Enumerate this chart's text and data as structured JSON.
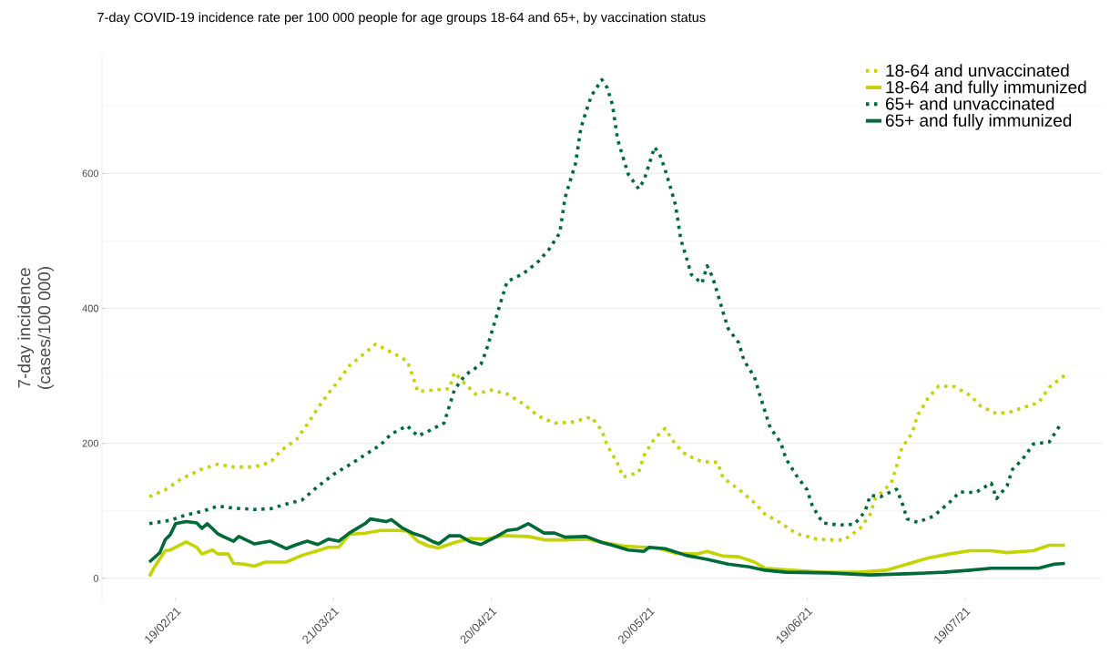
{
  "chart_data": {
    "type": "line",
    "title": "7-day COVID-19 incidence rate per 100 000 people for age groups 18-64 and 65+, by vaccination status",
    "ylabel": "7-day incidence\n(cases/100 000)",
    "xlim": [
      "2021-02-05",
      "2021-08-14"
    ],
    "xticks": [
      {
        "value": "2021-02-19",
        "label": "19/02/21"
      },
      {
        "value": "2021-03-21",
        "label": "21/03/21"
      },
      {
        "value": "2021-04-20",
        "label": "20/04/21"
      },
      {
        "value": "2021-05-20",
        "label": "20/05/21"
      },
      {
        "value": "2021-06-19",
        "label": "19/06/21"
      },
      {
        "value": "2021-07-19",
        "label": "19/07/21"
      }
    ],
    "ylim": [
      -34,
      776
    ],
    "yticks": [
      0,
      {
        "value": 100,
        "label": null
      },
      200,
      {
        "value": 300,
        "label": null
      },
      400,
      {
        "value": 500,
        "label": null
      },
      600,
      {
        "value": 700,
        "label": null
      }
    ],
    "grid": "y",
    "legend": "top right",
    "series": [
      {
        "name": "18-64 and unvaccinated",
        "color": "#c3d400",
        "line_style": "dotted",
        "x": [
          "2021-02-14",
          "2021-02-17",
          "2021-02-20",
          "2021-02-24",
          "2021-02-27",
          "2021-03-02",
          "2021-03-06",
          "2021-03-09",
          "2021-03-11",
          "2021-03-14",
          "2021-03-16",
          "2021-03-18",
          "2021-03-20",
          "2021-03-22",
          "2021-03-24",
          "2021-03-27",
          "2021-03-29",
          "2021-04-01",
          "2021-04-04",
          "2021-04-05",
          "2021-04-06",
          "2021-04-09",
          "2021-04-12",
          "2021-04-13",
          "2021-04-15",
          "2021-04-17",
          "2021-04-20",
          "2021-04-23",
          "2021-04-26",
          "2021-04-29",
          "2021-05-02",
          "2021-05-05",
          "2021-05-09",
          "2021-05-11",
          "2021-05-12",
          "2021-05-14",
          "2021-05-15",
          "2021-05-18",
          "2021-05-19",
          "2021-05-21",
          "2021-05-23",
          "2021-05-25",
          "2021-05-27",
          "2021-05-30",
          "2021-06-02",
          "2021-06-03",
          "2021-06-06",
          "2021-06-09",
          "2021-06-11",
          "2021-06-14",
          "2021-06-17",
          "2021-06-21",
          "2021-06-23",
          "2021-06-26",
          "2021-06-29",
          "2021-07-01",
          "2021-07-02",
          "2021-07-05",
          "2021-07-06",
          "2021-07-07",
          "2021-07-09",
          "2021-07-10",
          "2021-07-12",
          "2021-07-14",
          "2021-07-17",
          "2021-07-20",
          "2021-07-22",
          "2021-07-25",
          "2021-07-28",
          "2021-07-30",
          "2021-08-02",
          "2021-08-04",
          "2021-08-07"
        ],
        "values": [
          121,
          131,
          147,
          162,
          169,
          165,
          165,
          172,
          189,
          206,
          228,
          252,
          274,
          293,
          315,
          334,
          347,
          335,
          322,
          301,
          277,
          279,
          281,
          305,
          288,
          273,
          279,
          273,
          259,
          240,
          230,
          231,
          239,
          219,
          197,
          170,
          150,
          157,
          182,
          207,
          222,
          198,
          183,
          173,
          172,
          149,
          132,
          112,
          95,
          82,
          66,
          58,
          57,
          57,
          73,
          95,
          119,
          141,
          166,
          193,
          216,
          242,
          267,
          285,
          284,
          271,
          255,
          244,
          247,
          253,
          260,
          283,
          301
        ]
      },
      {
        "name": "18-64 and fully immunized",
        "color": "#c3d400",
        "line_style": "solid",
        "x": [
          "2021-02-14",
          "2021-02-15",
          "2021-02-17",
          "2021-02-18",
          "2021-02-21",
          "2021-02-23",
          "2021-02-24",
          "2021-02-26",
          "2021-02-27",
          "2021-03-01",
          "2021-03-02",
          "2021-03-04",
          "2021-03-06",
          "2021-03-08",
          "2021-03-12",
          "2021-03-15",
          "2021-03-18",
          "2021-03-20",
          "2021-03-22",
          "2021-03-24",
          "2021-03-27",
          "2021-03-30",
          "2021-04-02",
          "2021-04-04",
          "2021-04-06",
          "2021-04-08",
          "2021-04-10",
          "2021-04-13",
          "2021-04-16",
          "2021-04-19",
          "2021-04-22",
          "2021-04-23",
          "2021-04-27",
          "2021-04-30",
          "2021-05-04",
          "2021-05-08",
          "2021-05-10",
          "2021-05-15",
          "2021-05-19",
          "2021-05-22",
          "2021-05-25",
          "2021-05-29",
          "2021-05-31",
          "2021-06-03",
          "2021-06-06",
          "2021-06-09",
          "2021-06-11",
          "2021-06-16",
          "2021-06-22",
          "2021-06-29",
          "2021-07-04",
          "2021-07-08",
          "2021-07-12",
          "2021-07-16",
          "2021-07-20",
          "2021-07-24",
          "2021-07-27",
          "2021-08-01",
          "2021-08-04",
          "2021-08-07"
        ],
        "values": [
          3,
          17,
          41,
          42,
          54,
          46,
          36,
          42,
          36,
          36,
          22,
          21,
          18,
          24,
          24,
          34,
          41,
          46,
          46,
          65,
          67,
          71,
          71,
          70,
          55,
          48,
          45,
          53,
          59,
          58,
          63,
          63,
          62,
          57,
          57,
          58,
          55,
          48,
          46,
          44,
          37,
          36,
          40,
          33,
          32,
          24,
          15,
          12,
          9,
          9,
          12,
          21,
          30,
          36,
          41,
          41,
          38,
          41,
          49,
          49
        ]
      },
      {
        "name": "65+ and unvaccinated",
        "color": "#006b38",
        "line_style": "dotted",
        "x": [
          "2021-02-14",
          "2021-02-18",
          "2021-02-21",
          "2021-02-24",
          "2021-02-27",
          "2021-03-02",
          "2021-03-06",
          "2021-03-09",
          "2021-03-12",
          "2021-03-15",
          "2021-03-18",
          "2021-03-21",
          "2021-03-24",
          "2021-03-27",
          "2021-03-30",
          "2021-04-01",
          "2021-04-04",
          "2021-04-06",
          "2021-04-08",
          "2021-04-11",
          "2021-04-12",
          "2021-04-13",
          "2021-04-15",
          "2021-04-18",
          "2021-04-19",
          "2021-04-20",
          "2021-04-21",
          "2021-04-22",
          "2021-04-23",
          "2021-04-26",
          "2021-04-29",
          "2021-05-01",
          "2021-05-03",
          "2021-05-04",
          "2021-05-06",
          "2021-05-07",
          "2021-05-08",
          "2021-05-09",
          "2021-05-11",
          "2021-05-12",
          "2021-05-13",
          "2021-05-14",
          "2021-05-16",
          "2021-05-18",
          "2021-05-19",
          "2021-05-20",
          "2021-05-21",
          "2021-05-22",
          "2021-05-23",
          "2021-05-24",
          "2021-05-25",
          "2021-05-26",
          "2021-05-27",
          "2021-05-28",
          "2021-05-30",
          "2021-05-31",
          "2021-06-01",
          "2021-06-02",
          "2021-06-03",
          "2021-06-04",
          "2021-06-06",
          "2021-06-07",
          "2021-06-09",
          "2021-06-10",
          "2021-06-11",
          "2021-06-12",
          "2021-06-14",
          "2021-06-15",
          "2021-06-17",
          "2021-06-19",
          "2021-06-20",
          "2021-06-22",
          "2021-06-25",
          "2021-06-28",
          "2021-06-30",
          "2021-07-01",
          "2021-07-03",
          "2021-07-06",
          "2021-07-07",
          "2021-07-08",
          "2021-07-10",
          "2021-07-13",
          "2021-07-16",
          "2021-07-18",
          "2021-07-21",
          "2021-07-24",
          "2021-07-25",
          "2021-07-27",
          "2021-07-28",
          "2021-07-30",
          "2021-08-01",
          "2021-08-04",
          "2021-08-06"
        ],
        "values": [
          81,
          86,
          94,
          99,
          107,
          104,
          102,
          103,
          110,
          116,
          136,
          154,
          168,
          183,
          198,
          214,
          226,
          211,
          218,
          230,
          255,
          280,
          301,
          317,
          337,
          363,
          389,
          415,
          440,
          451,
          470,
          488,
          512,
          564,
          615,
          667,
          692,
          715,
          739,
          727,
          702,
          650,
          599,
          577,
          590,
          614,
          639,
          628,
          606,
          580,
          553,
          502,
          477,
          450,
          437,
          463,
          447,
          422,
          395,
          370,
          349,
          323,
          298,
          272,
          247,
          223,
          201,
          177,
          152,
          131,
          107,
          82,
          79,
          80,
          99,
          123,
          121,
          132,
          113,
          88,
          83,
          92,
          112,
          128,
          127,
          141,
          118,
          137,
          161,
          177,
          199,
          202,
          226
        ]
      },
      {
        "name": "65+ and fully immunized",
        "color": "#006b38",
        "line_style": "solid",
        "x": [
          "2021-02-14",
          "2021-02-16",
          "2021-02-17",
          "2021-02-18",
          "2021-02-19",
          "2021-02-21",
          "2021-02-23",
          "2021-02-24",
          "2021-02-25",
          "2021-02-27",
          "2021-02-28",
          "2021-03-02",
          "2021-03-03",
          "2021-03-06",
          "2021-03-09",
          "2021-03-12",
          "2021-03-14",
          "2021-03-16",
          "2021-03-18",
          "2021-03-20",
          "2021-03-22",
          "2021-03-24",
          "2021-03-27",
          "2021-03-28",
          "2021-03-31",
          "2021-04-01",
          "2021-04-03",
          "2021-04-05",
          "2021-04-07",
          "2021-04-09",
          "2021-04-10",
          "2021-04-12",
          "2021-04-14",
          "2021-04-16",
          "2021-04-18",
          "2021-04-21",
          "2021-04-23",
          "2021-04-25",
          "2021-04-27",
          "2021-04-30",
          "2021-05-02",
          "2021-05-04",
          "2021-05-08",
          "2021-05-11",
          "2021-05-13",
          "2021-05-16",
          "2021-05-19",
          "2021-05-20",
          "2021-05-23",
          "2021-05-27",
          "2021-05-31",
          "2021-06-04",
          "2021-06-08",
          "2021-06-11",
          "2021-06-15",
          "2021-06-23",
          "2021-07-01",
          "2021-07-09",
          "2021-07-15",
          "2021-07-20",
          "2021-07-24",
          "2021-08-02",
          "2021-08-05",
          "2021-08-07"
        ],
        "values": [
          24,
          38,
          57,
          65,
          81,
          84,
          82,
          74,
          81,
          66,
          62,
          55,
          62,
          51,
          55,
          44,
          50,
          55,
          50,
          58,
          55,
          67,
          81,
          88,
          84,
          87,
          75,
          67,
          62,
          54,
          51,
          63,
          63,
          54,
          50,
          62,
          71,
          73,
          81,
          67,
          67,
          61,
          62,
          53,
          49,
          42,
          40,
          46,
          44,
          34,
          28,
          21,
          17,
          12,
          9,
          8,
          5,
          7,
          9,
          12,
          15,
          15,
          21,
          22
        ]
      }
    ]
  }
}
